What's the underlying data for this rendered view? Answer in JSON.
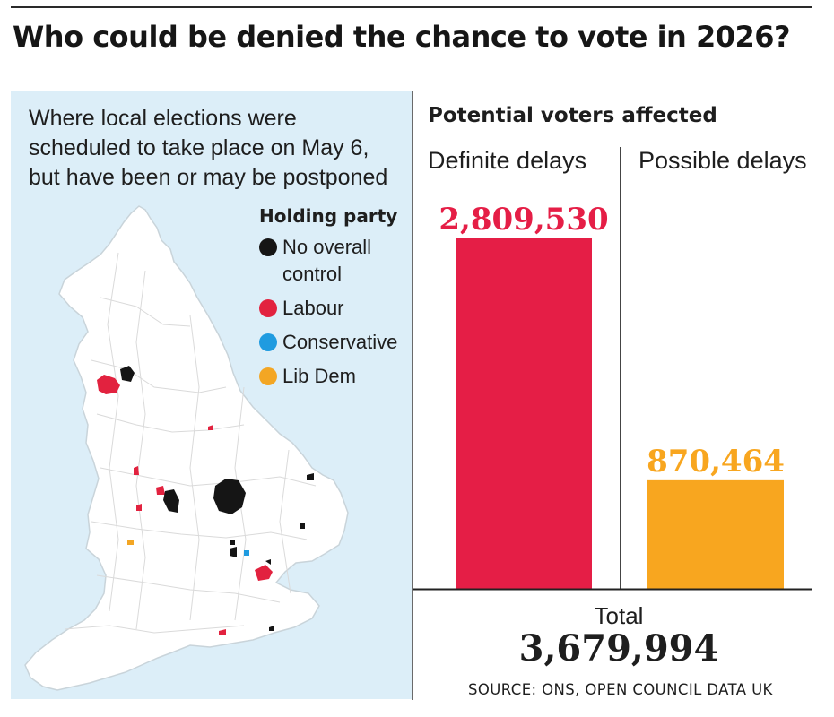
{
  "headline": "Who could be denied the chance to vote in 2026?",
  "map": {
    "caption_lines": [
      "Where local elections were",
      "scheduled to take place on May 6,",
      "but have been or may be postponed"
    ],
    "legend": {
      "title": "Holding party",
      "items": [
        {
          "label_lines": [
            "No overall",
            "control"
          ],
          "color": "#151515"
        },
        {
          "label_lines": [
            "Labour"
          ],
          "color": "#e2223f"
        },
        {
          "label_lines": [
            "Conservative"
          ],
          "color": "#1f9be0"
        },
        {
          "label_lines": [
            "Lib Dem"
          ],
          "color": "#f3a624"
        }
      ]
    },
    "colors": {
      "sea": "#dceef8",
      "land": "#ffffff",
      "borders": "#cfcfcf"
    }
  },
  "chart_title": "Potential voters affected",
  "chart_data": {
    "type": "bar",
    "title": "Potential voters affected",
    "categories": [
      "Definite delays",
      "Possible delays"
    ],
    "values": [
      2809530,
      870464
    ],
    "value_labels": [
      "2,809,530",
      "870,464"
    ],
    "colors": [
      "#e51e46",
      "#f8a61f"
    ],
    "ylim": [
      0,
      2809530
    ],
    "grid": false,
    "legend": "none"
  },
  "total": {
    "label": "Total",
    "value": "3,679,994"
  },
  "source": "SOURCE: ONS, OPEN COUNCIL DATA UK"
}
